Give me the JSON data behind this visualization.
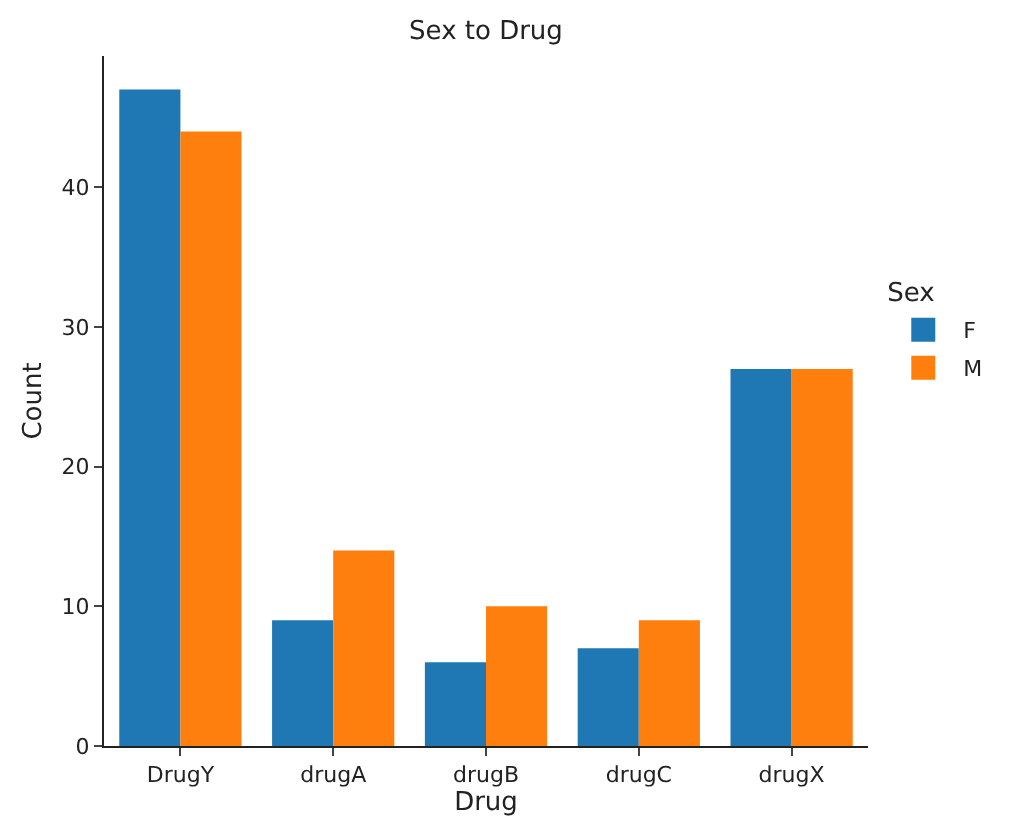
{
  "chart_data": {
    "type": "bar",
    "title": "Sex to Drug",
    "xlabel": "Drug",
    "ylabel": "Count",
    "legend_title": "Sex",
    "categories": [
      "DrugY",
      "drugA",
      "drugB",
      "drugC",
      "drugX"
    ],
    "series": [
      {
        "name": "F",
        "color": "#1f77b4",
        "values": [
          47,
          9,
          6,
          7,
          27
        ]
      },
      {
        "name": "M",
        "color": "#ff7f0e",
        "values": [
          44,
          14,
          10,
          9,
          27
        ]
      }
    ],
    "ylim": [
      0,
      49.4
    ],
    "yticks": [
      0,
      10,
      20,
      30,
      40
    ],
    "legend": "right"
  }
}
